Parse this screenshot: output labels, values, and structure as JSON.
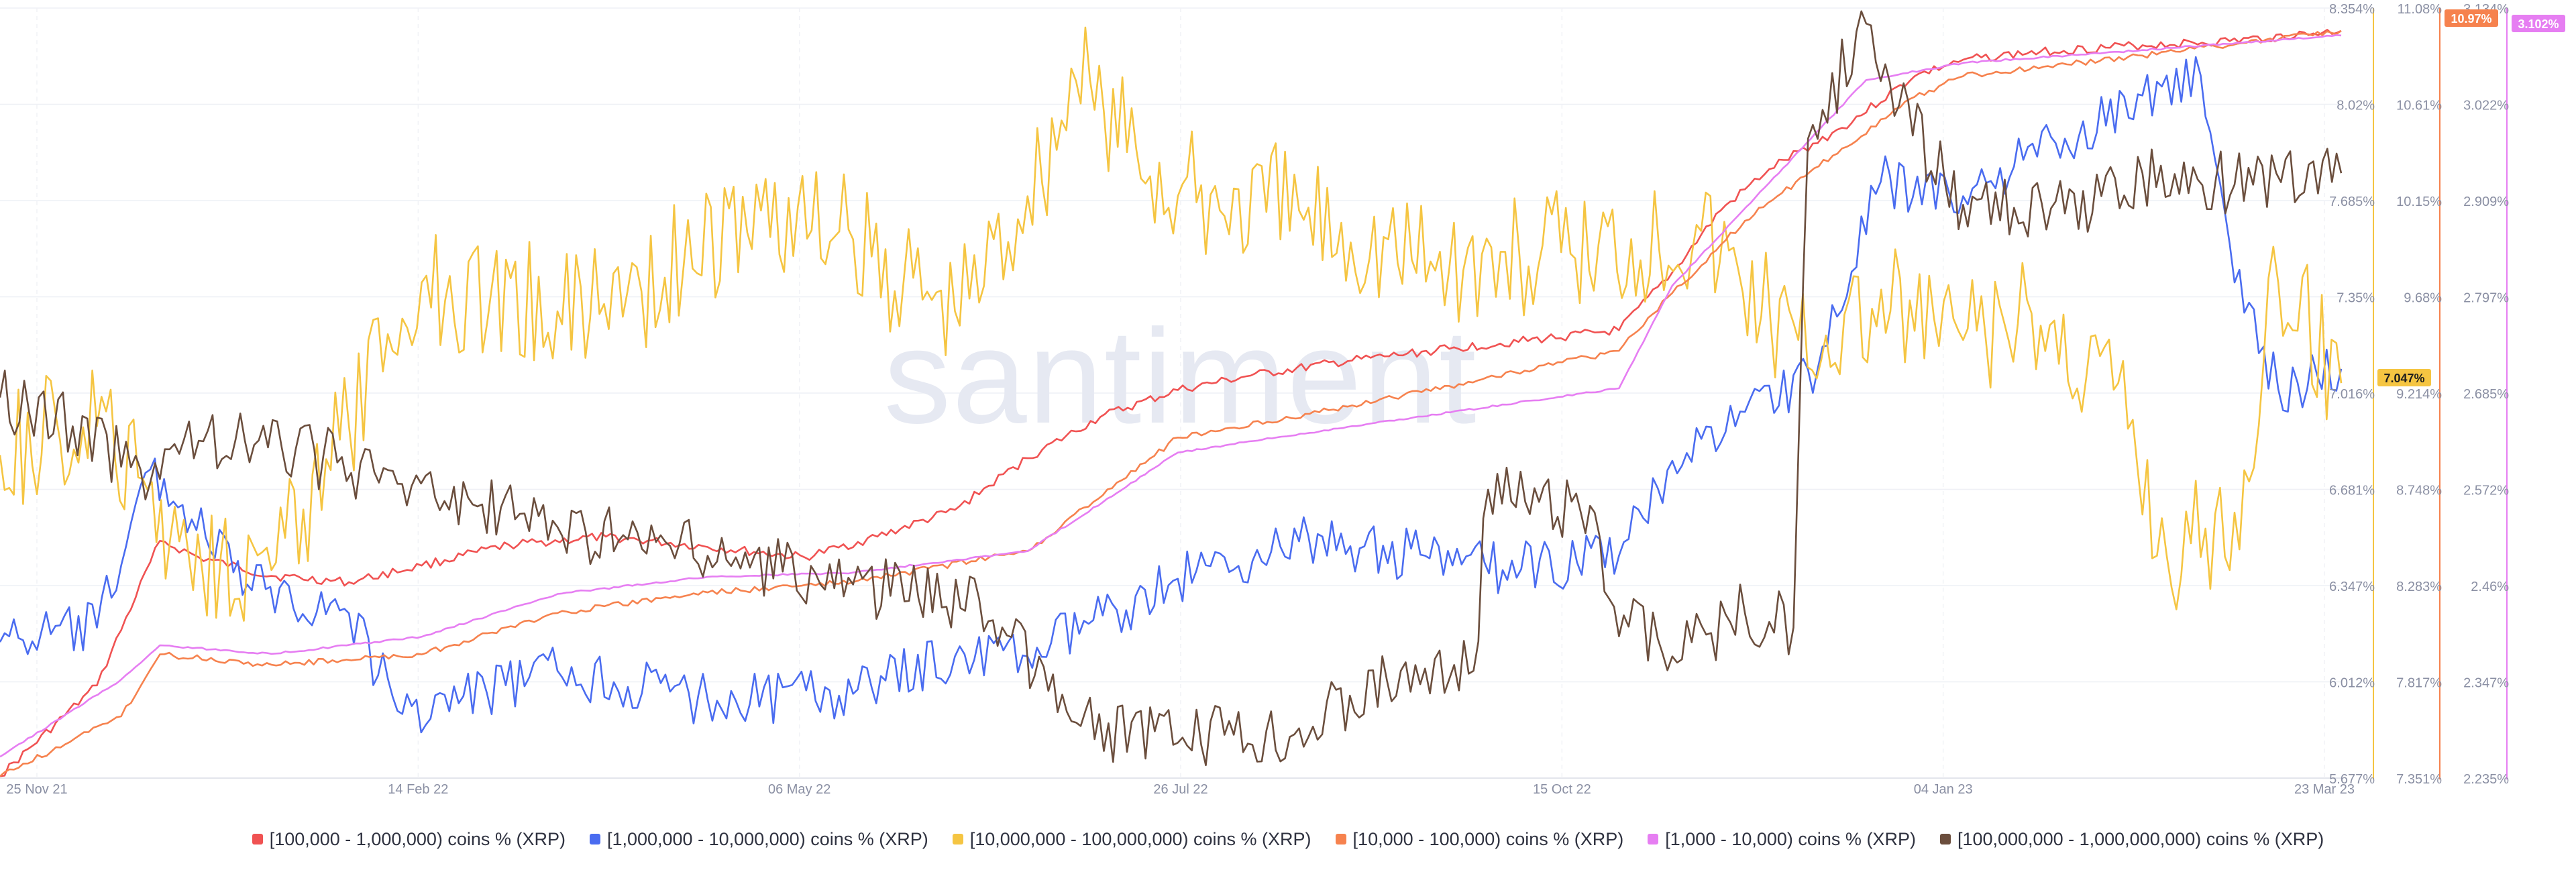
{
  "watermark": "santiment",
  "legend": [
    {
      "label": "[100,000  - 1,000,000) coins % (XRP)",
      "color": "#f05252"
    },
    {
      "label": "[1,000,000 - 10,000,000) coins % (XRP)",
      "color": "#4a6cf0"
    },
    {
      "label": "[10,000,000 - 100,000,000) coins % (XRP)",
      "color": "#f5c542"
    },
    {
      "label": "[10,000 - 100,000) coins % (XRP)",
      "color": "#f6824e"
    },
    {
      "label": "[1,000 - 10,000) coins % (XRP)",
      "color": "#e67ef2"
    },
    {
      "label": "[100,000,000 - 1,000,000,000) coins % (XRP)",
      "color": "#6b4e3d"
    }
  ],
  "chart_data": {
    "type": "line",
    "x_tick_labels": [
      "25 Nov 21",
      "14 Feb 22",
      "06 May 22",
      "26 Jul 22",
      "15 Oct 22",
      "04 Jan 23",
      "23 Mar 23"
    ],
    "x_range": [
      "2021-11-25",
      "2023-03-23"
    ],
    "y_axes": [
      {
        "id": "yellow",
        "color": "#f5c542",
        "range": [
          5.677,
          8.354
        ],
        "ticks": [
          "8.354%",
          "8.02%",
          "7.685%",
          "7.35%",
          "7.016%",
          "6.681%",
          "6.347%",
          "6.012%",
          "5.677%"
        ],
        "current_badge": "7.047%"
      },
      {
        "id": "orange",
        "color": "#f6824e",
        "range": [
          7.351,
          11.08
        ],
        "ticks": [
          "11.08%",
          "10.61%",
          "10.15%",
          "9.68%",
          "9.214%",
          "8.748%",
          "8.283%",
          "7.817%",
          "7.351%"
        ],
        "current_badge": "10.97%"
      },
      {
        "id": "pink",
        "color": "#e67ef2",
        "range": [
          2.235,
          3.134
        ],
        "ticks": [
          "3.134%",
          "3.022%",
          "2.909%",
          "2.797%",
          "2.685%",
          "2.572%",
          "2.46%",
          "2.347%",
          "2.235%"
        ],
        "current_badge": "3.102%"
      }
    ],
    "series": [
      {
        "name": "[100,000  - 1,000,000) coins % (XRP)",
        "color": "#f05252",
        "axis": "orange",
        "noise": 0.3,
        "x": [
          "2021-11-25",
          "2021-12-15",
          "2021-12-28",
          "2022-01-05",
          "2022-01-20",
          "2022-02-05",
          "2022-02-20",
          "2022-03-10",
          "2022-03-30",
          "2022-04-20",
          "2022-05-10",
          "2022-05-25",
          "2022-06-10",
          "2022-06-25",
          "2022-07-10",
          "2022-07-26",
          "2022-08-10",
          "2022-08-30",
          "2022-09-20",
          "2022-10-10",
          "2022-10-25",
          "2022-11-05",
          "2022-11-15",
          "2022-11-25",
          "2022-12-10",
          "2022-12-25",
          "2023-01-04",
          "2023-01-20",
          "2023-02-10",
          "2023-02-28",
          "2023-03-23"
        ],
        "y": [
          7.36,
          7.8,
          8.5,
          8.42,
          8.33,
          8.3,
          8.38,
          8.48,
          8.52,
          8.47,
          8.42,
          8.52,
          8.65,
          8.9,
          9.1,
          9.23,
          9.3,
          9.37,
          9.43,
          9.48,
          9.52,
          9.8,
          10.1,
          10.3,
          10.5,
          10.75,
          10.83,
          10.87,
          10.9,
          10.92,
          10.97
        ]
      },
      {
        "name": "[1,000,000 - 10,000,000) coins % (XRP)",
        "color": "#4a6cf0",
        "axis": "yellow",
        "noise": 1.8,
        "x": [
          "2021-11-25",
          "2021-12-15",
          "2021-12-26",
          "2022-01-15",
          "2022-02-05",
          "2022-02-16",
          "2022-03-20",
          "2022-04-20",
          "2022-05-20",
          "2022-06-10",
          "2022-06-25",
          "2022-07-26",
          "2022-08-20",
          "2022-09-15",
          "2022-10-01",
          "2022-10-25",
          "2022-11-05",
          "2022-11-20",
          "2022-12-05",
          "2022-12-18",
          "2023-01-04",
          "2023-01-25",
          "2023-02-10",
          "2023-02-22",
          "2023-03-01",
          "2023-03-10",
          "2023-03-23"
        ],
        "y": [
          6.15,
          6.2,
          6.75,
          6.35,
          6.25,
          5.9,
          6.05,
          5.95,
          5.97,
          6.1,
          6.1,
          6.37,
          6.5,
          6.45,
          6.4,
          6.45,
          6.78,
          6.95,
          7.1,
          7.75,
          7.7,
          7.9,
          8.05,
          8.12,
          7.4,
          7.03,
          7.1
        ]
      },
      {
        "name": "[10,000,000 - 100,000,000) coins % (XRP)",
        "color": "#f5c542",
        "axis": "yellow",
        "noise": 4.5,
        "x": [
          "2021-11-25",
          "2021-12-15",
          "2022-01-01",
          "2022-01-20",
          "2022-02-05",
          "2022-02-20",
          "2022-03-20",
          "2022-04-15",
          "2022-05-01",
          "2022-05-20",
          "2022-06-10",
          "2022-06-25",
          "2022-07-05",
          "2022-07-26",
          "2022-08-20",
          "2022-09-20",
          "2022-10-15",
          "2022-11-10",
          "2022-12-01",
          "2022-12-20",
          "2023-01-04",
          "2023-01-20",
          "2023-02-05",
          "2023-02-15",
          "2023-03-01",
          "2023-03-10",
          "2023-03-23"
        ],
        "y": [
          6.8,
          6.9,
          6.5,
          6.4,
          6.9,
          7.4,
          7.3,
          7.45,
          7.65,
          7.55,
          7.3,
          7.7,
          8.1,
          7.7,
          7.65,
          7.45,
          7.5,
          7.6,
          7.2,
          7.3,
          7.2,
          7.25,
          7.05,
          6.45,
          6.6,
          7.4,
          7.05
        ]
      },
      {
        "name": "[10,000 - 100,000) coins % (XRP)",
        "color": "#f6824e",
        "axis": "orange",
        "noise": 0.2,
        "x": [
          "2021-11-25",
          "2021-12-20",
          "2021-12-28",
          "2022-01-20",
          "2022-02-20",
          "2022-03-20",
          "2022-04-20",
          "2022-05-20",
          "2022-06-25",
          "2022-07-26",
          "2022-08-30",
          "2022-09-20",
          "2022-10-25",
          "2022-11-05",
          "2022-11-20",
          "2022-12-10",
          "2022-12-25",
          "2023-01-04",
          "2023-02-10",
          "2023-03-23"
        ],
        "y": [
          7.36,
          7.65,
          7.95,
          7.9,
          7.95,
          8.15,
          8.25,
          8.3,
          8.45,
          9.0,
          9.15,
          9.25,
          9.42,
          9.7,
          10.05,
          10.4,
          10.65,
          10.75,
          10.85,
          10.97
        ]
      },
      {
        "name": "[1,000 - 10,000) coins % (XRP)",
        "color": "#e67ef2",
        "axis": "pink",
        "noise": 0.06,
        "x": [
          "2021-11-25",
          "2021-12-20",
          "2021-12-28",
          "2022-01-20",
          "2022-02-20",
          "2022-03-20",
          "2022-04-20",
          "2022-05-20",
          "2022-06-25",
          "2022-07-26",
          "2022-08-30",
          "2022-10-25",
          "2022-11-05",
          "2022-11-25",
          "2022-12-15",
          "2023-01-04",
          "2023-02-10",
          "2023-03-23"
        ],
        "y": [
          2.26,
          2.35,
          2.39,
          2.38,
          2.4,
          2.45,
          2.47,
          2.475,
          2.5,
          2.615,
          2.645,
          2.69,
          2.81,
          2.93,
          3.05,
          3.07,
          3.085,
          3.102
        ]
      },
      {
        "name": "[100,000,000 - 1,000,000,000) coins % (XRP)",
        "color": "#6b4e3d",
        "axis": "yellow",
        "noise": 2.2,
        "x": [
          "2021-11-25",
          "2021-12-10",
          "2021-12-24",
          "2022-01-05",
          "2022-01-25",
          "2022-02-15",
          "2022-03-20",
          "2022-04-20",
          "2022-05-20",
          "2022-06-15",
          "2022-07-05",
          "2022-07-26",
          "2022-08-20",
          "2022-09-10",
          "2022-09-25",
          "2022-09-28",
          "2022-10-20",
          "2022-10-23",
          "2022-11-05",
          "2022-11-20",
          "2022-11-30",
          "2022-12-03",
          "2022-12-15",
          "2022-12-18",
          "2023-01-04",
          "2023-01-25",
          "2023-02-10",
          "2023-03-01",
          "2023-03-23"
        ],
        "y": [
          7.0,
          6.9,
          6.75,
          6.85,
          6.82,
          6.7,
          6.55,
          6.45,
          6.35,
          6.3,
          5.87,
          5.8,
          5.85,
          6.05,
          6.05,
          6.68,
          6.6,
          6.3,
          6.1,
          6.25,
          6.2,
          7.9,
          8.3,
          8.1,
          7.67,
          7.64,
          7.78,
          7.74,
          7.78
        ]
      }
    ]
  }
}
